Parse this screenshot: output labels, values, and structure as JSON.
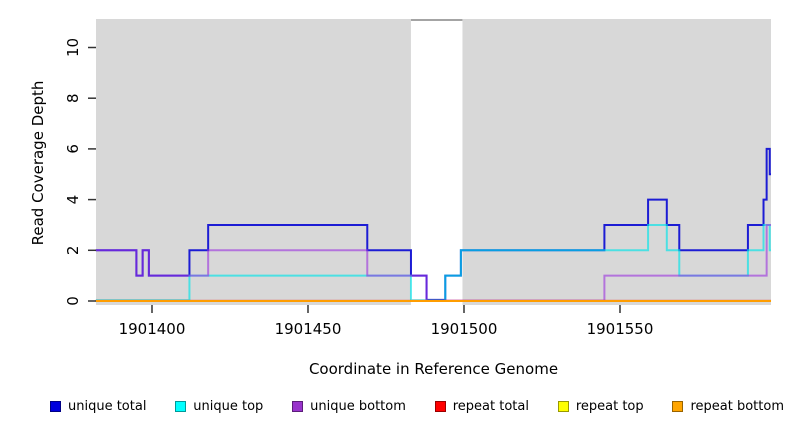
{
  "chart_data": {
    "type": "line",
    "subtype": "step-coverage",
    "title": "",
    "xlabel": "Coordinate in Reference Genome",
    "ylabel": "Read Coverage Depth",
    "x_ticks": [
      1901400,
      1901450,
      1901500,
      1901550
    ],
    "y_ticks": [
      0,
      2,
      4,
      6,
      8,
      10
    ],
    "xlim": [
      1901382,
      1901598.4
    ],
    "ylim": [
      -0.2,
      11.1
    ],
    "grid": false,
    "legend_position": "bottom",
    "plot_bg_color": "#d8d8d8",
    "gap_region": {
      "start": 1901483,
      "end": 1901499.5,
      "fill": "#ffffff",
      "top_edge_color": "#a4a4a4"
    },
    "series": [
      {
        "name": "unique total",
        "line_color": "#1c1cd4",
        "legend_color": "#0000dd",
        "opacity": 1,
        "zero_offset": -1.1,
        "segments": [
          [
            1901382,
            1901395,
            2
          ],
          [
            1901395,
            1901397,
            1
          ],
          [
            1901397,
            1901399,
            2
          ],
          [
            1901399,
            1901412,
            1
          ],
          [
            1901412,
            1901418,
            2
          ],
          [
            1901418,
            1901469,
            3
          ],
          [
            1901469,
            1901483,
            2
          ],
          [
            1901483,
            1901488,
            1
          ],
          [
            1901488,
            1901494,
            0
          ],
          [
            1901494,
            1901499,
            1
          ],
          [
            1901499,
            1901545,
            2
          ],
          [
            1901545,
            1901559,
            3
          ],
          [
            1901559,
            1901565,
            4
          ],
          [
            1901565,
            1901569,
            3
          ],
          [
            1901569,
            1901591,
            2
          ],
          [
            1901591,
            1901596,
            3
          ],
          [
            1901596,
            1901597,
            4
          ],
          [
            1901597,
            1901598,
            6
          ],
          [
            1901598,
            1901599,
            5
          ]
        ]
      },
      {
        "name": "unique top",
        "line_color": "#00e5ea",
        "legend_color": "#00ffff",
        "opacity": 0.65,
        "zero_offset": -0.7,
        "segments": [
          [
            1901382,
            1901412,
            0
          ],
          [
            1901412,
            1901483,
            1
          ],
          [
            1901483,
            1901494,
            0
          ],
          [
            1901494,
            1901499,
            1
          ],
          [
            1901499,
            1901559,
            2
          ],
          [
            1901559,
            1901565,
            3
          ],
          [
            1901565,
            1901569,
            2
          ],
          [
            1901569,
            1901591,
            1
          ],
          [
            1901591,
            1901596,
            2
          ],
          [
            1901596,
            1901598,
            3
          ],
          [
            1901598,
            1901599,
            2
          ]
        ]
      },
      {
        "name": "unique bottom",
        "line_color": "#9b30e0",
        "legend_color": "#9933cc",
        "opacity": 0.6,
        "zero_offset": -0.35,
        "segments": [
          [
            1901382,
            1901395,
            2
          ],
          [
            1901395,
            1901397,
            1
          ],
          [
            1901397,
            1901399,
            2
          ],
          [
            1901399,
            1901418,
            1
          ],
          [
            1901418,
            1901469,
            2
          ],
          [
            1901469,
            1901488,
            1
          ],
          [
            1901488,
            1901545,
            0
          ],
          [
            1901545,
            1901597,
            1
          ],
          [
            1901597,
            1901599,
            3
          ]
        ]
      },
      {
        "name": "repeat total",
        "line_color": "#e00000",
        "legend_color": "#ff0000",
        "opacity": 0.9,
        "zero_offset": -0.1,
        "segments": [
          [
            1901382,
            1901599,
            0
          ]
        ]
      },
      {
        "name": "repeat top",
        "line_color": "#ffe800",
        "legend_color": "#ffff00",
        "opacity": 0.9,
        "zero_offset": -0.05,
        "segments": [
          [
            1901382,
            1901599,
            0
          ]
        ]
      },
      {
        "name": "repeat bottom",
        "line_color": "#ff9d00",
        "legend_color": "#ffa500",
        "opacity": 1,
        "zero_offset": 0,
        "segments": [
          [
            1901382,
            1901599,
            0
          ]
        ]
      }
    ]
  }
}
